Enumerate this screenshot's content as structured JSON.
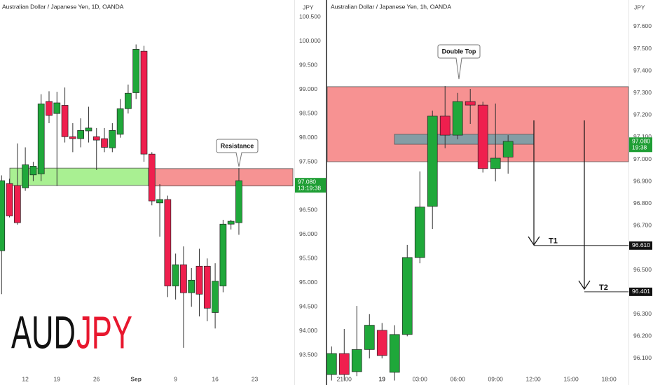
{
  "chart_data": [
    {
      "type": "candlestick",
      "title": "Australian Dollar / Japanese Yen, 1D, OANDA",
      "currency": "JPY",
      "watermark": [
        "AUD",
        "JPY"
      ],
      "annotation": "Resistance",
      "xlim": [
        -0.2,
        37
      ],
      "ylim": [
        93.17,
        100.85
      ],
      "xticks": [
        {
          "value": 3,
          "label": "12"
        },
        {
          "value": 7,
          "label": "19"
        },
        {
          "value": 12,
          "label": "26"
        },
        {
          "value": 17,
          "label": "Sep"
        },
        {
          "value": 22,
          "label": "9"
        },
        {
          "value": 27,
          "label": "16"
        },
        {
          "value": 32,
          "label": "23"
        }
      ],
      "yticks": [
        {
          "value": 100.5,
          "label": "100.500"
        },
        {
          "value": 100,
          "label": "100.000"
        },
        {
          "value": 99.5,
          "label": "99.500"
        },
        {
          "value": 99,
          "label": "99.000"
        },
        {
          "value": 98.5,
          "label": "98.500"
        },
        {
          "value": 98,
          "label": "98.000"
        },
        {
          "value": 97.5,
          "label": "97.500"
        },
        {
          "value": 96.5,
          "label": "96.500"
        },
        {
          "value": 96,
          "label": "96.000"
        },
        {
          "value": 95.5,
          "label": "95.500"
        },
        {
          "value": 95,
          "label": "95.000"
        },
        {
          "value": 94.5,
          "label": "94.500"
        },
        {
          "value": 94,
          "label": "94.000"
        },
        {
          "value": 93.5,
          "label": "93.500"
        }
      ],
      "grid": false,
      "up_color": "#1fa83a",
      "down_color": "#ef1f4e",
      "open": [
        95.66,
        97.05,
        97.01,
        96.96,
        97.23,
        97.25,
        98.75,
        98.5,
        98.67,
        98.02,
        97.98,
        98.14,
        98.02,
        97.98,
        97.79,
        98.07,
        98.6,
        98.93,
        99.79,
        97.66,
        96.65,
        96.72,
        94.93,
        95.37,
        94.79,
        95.34,
        95.34,
        94.38,
        94.93,
        96.21,
        96.24
      ],
      "high": [
        97.22,
        97.15,
        97.88,
        97.8,
        97.5,
        98.9,
        98.96,
        98.95,
        99.04,
        98.3,
        98.4,
        98.64,
        98.2,
        98.2,
        98.3,
        98.8,
        99.1,
        99.93,
        99.9,
        97.7,
        97.04,
        96.8,
        95.6,
        95.75,
        95.3,
        95.7,
        95.5,
        95.4,
        96.3,
        96.3,
        97.37
      ],
      "low": [
        94.76,
        96.35,
        96.2,
        96.9,
        97.1,
        97.1,
        98.3,
        97.0,
        97.9,
        97.7,
        97.8,
        97.9,
        97.33,
        97.7,
        97.7,
        98.0,
        98.5,
        98.8,
        97.5,
        96.6,
        95.95,
        94.7,
        94.65,
        93.65,
        94.5,
        94.3,
        94.2,
        94.05,
        94.8,
        96.1,
        95.99
      ],
      "close": [
        97.11,
        96.38,
        96.24,
        97.44,
        97.41,
        98.7,
        98.46,
        98.72,
        98.02,
        97.98,
        98.15,
        98.2,
        97.95,
        97.8,
        98.15,
        98.6,
        98.92,
        99.83,
        97.66,
        96.69,
        96.72,
        94.93,
        95.37,
        94.79,
        95.05,
        94.76,
        94.47,
        95.03,
        96.21,
        96.27,
        97.11
      ],
      "zones": [
        {
          "low": 97.01,
          "high": 97.37,
          "color": "#a4ef8c"
        },
        {
          "low": 97.0,
          "high": 97.36,
          "color": "#f58d8d"
        }
      ],
      "last_price": {
        "value": 97.08,
        "label": "97.080",
        "countdown": "13:19:38",
        "color": "#1e9e34"
      }
    },
    {
      "type": "candlestick",
      "title": "Australian Dollar / Japanese Yen, 1h, OANDA",
      "currency": "JPY",
      "annotation": "Double Top",
      "xlim": [
        -0.35,
        23.55
      ],
      "ylim": [
        96.043,
        97.72
      ],
      "xticks": [
        {
          "value": 1,
          "label": "21:00"
        },
        {
          "value": 4,
          "label": "19"
        },
        {
          "value": 7,
          "label": "03:00"
        },
        {
          "value": 10,
          "label": "06:00"
        },
        {
          "value": 13,
          "label": "09:00"
        },
        {
          "value": 16,
          "label": "12:00"
        },
        {
          "value": 19,
          "label": "15:00"
        },
        {
          "value": 22,
          "label": "18:00"
        }
      ],
      "yticks": [
        {
          "value": 97.6,
          "label": "97.600"
        },
        {
          "value": 97.5,
          "label": "97.500"
        },
        {
          "value": 97.4,
          "label": "97.400"
        },
        {
          "value": 97.3,
          "label": "97.300"
        },
        {
          "value": 97.2,
          "label": "97.200"
        },
        {
          "value": 97.1,
          "label": "97.100"
        },
        {
          "value": 97,
          "label": "97.000"
        },
        {
          "value": 96.9,
          "label": "96.900"
        },
        {
          "value": 96.8,
          "label": "96.800"
        },
        {
          "value": 96.7,
          "label": "96.700"
        },
        {
          "value": 96.5,
          "label": "96.500"
        },
        {
          "value": 96.3,
          "label": "96.300"
        },
        {
          "value": 96.2,
          "label": "96.200"
        },
        {
          "value": 96.1,
          "label": "96.100"
        }
      ],
      "grid": false,
      "up_color": "#1fa83a",
      "down_color": "#ef1f4e",
      "open": [
        96.027,
        96.122,
        96.04,
        96.14,
        96.227,
        96.037,
        96.208,
        96.556,
        96.787,
        97.195,
        97.109,
        97.261,
        97.245,
        96.958,
        97.01
      ],
      "high": [
        96.154,
        96.233,
        96.337,
        96.3,
        96.26,
        96.25,
        96.613,
        96.945,
        97.22,
        97.331,
        97.3,
        97.318,
        97.26,
        97.252,
        97.109
      ],
      "low": [
        96.0,
        96.0,
        96.02,
        96.1,
        96.1,
        96.0,
        96.2,
        96.53,
        96.685,
        97.05,
        97.09,
        97.16,
        96.94,
        96.9,
        96.935
      ],
      "close": [
        96.122,
        96.027,
        96.14,
        96.25,
        96.113,
        96.208,
        96.556,
        96.784,
        97.195,
        97.109,
        97.261,
        97.245,
        96.958,
        97.005,
        97.081
      ],
      "zones": [
        {
          "low": 96.989,
          "high": 97.328,
          "color": "#f78c8c"
        },
        {
          "low": 97.068,
          "high": 97.113,
          "color": "#7d9ea6"
        }
      ],
      "targets": [
        {
          "name": "T1",
          "value": 96.61,
          "label": "96.610"
        },
        {
          "name": "T2",
          "value": 96.401,
          "label": "96.401"
        }
      ],
      "last_price": {
        "value": 97.08,
        "label": "97.080",
        "countdown": "19:38",
        "color": "#1e9e34"
      }
    }
  ]
}
